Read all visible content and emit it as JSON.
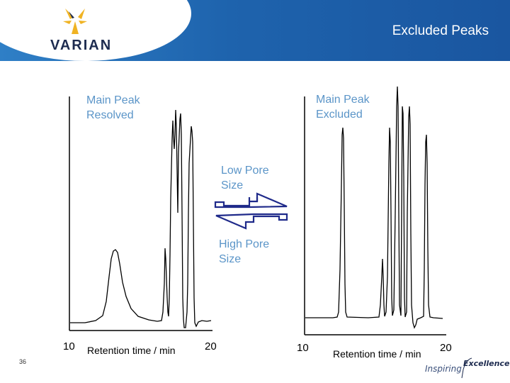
{
  "header": {
    "title": "Excluded Peaks",
    "logo_text": "VARIAN",
    "colors": {
      "band": "#1e63ad",
      "logo_gold": "#f0b323",
      "logo_navy": "#1d2b4f"
    }
  },
  "left_chart": {
    "label": "Main Peak\nResolved",
    "x_min": "10",
    "x_max": "20",
    "x_title": "Retention time / min"
  },
  "right_chart": {
    "label": "Main Peak\nExcluded",
    "x_min": "10",
    "x_max": "20",
    "x_title": "Retention time / min"
  },
  "arrows": {
    "top_label": "Low Pore\nSize",
    "bottom_label": "High Pore\nSize",
    "color": "#1f2a8a"
  },
  "label_color": "#5b95c8",
  "footer": {
    "page_number": "36",
    "tagline_left": "Inspiring",
    "tagline_right": "Excellence"
  }
}
